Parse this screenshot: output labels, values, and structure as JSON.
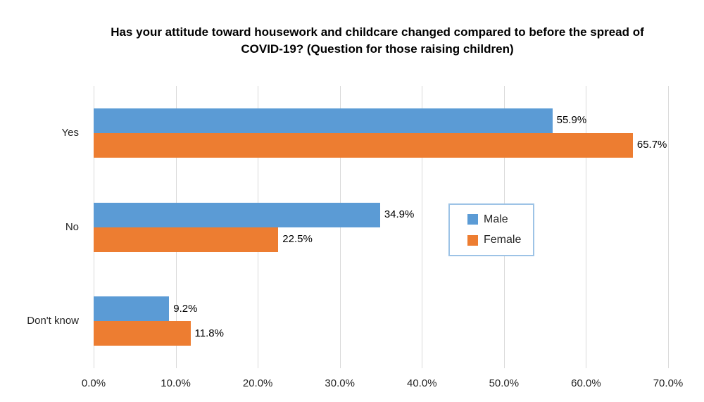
{
  "chart_data": {
    "type": "bar",
    "orientation": "horizontal",
    "title": "Has your attitude toward housework and childcare changed compared to before the spread of COVID-19? (Question for those raising children)",
    "categories": [
      "Yes",
      "No",
      "Don't know"
    ],
    "series": [
      {
        "name": "Male",
        "color": "#5B9BD5",
        "values": [
          55.9,
          34.9,
          9.2
        ],
        "labels": [
          "55.9%",
          "34.9%",
          "9.2%"
        ]
      },
      {
        "name": "Female",
        "color": "#ED7D31",
        "values": [
          65.7,
          22.5,
          11.8
        ],
        "labels": [
          "65.7%",
          "22.5%",
          "11.8%"
        ]
      }
    ],
    "xlabel": "",
    "ylabel": "",
    "xlim": [
      0,
      70
    ],
    "tick_values": [
      0,
      10,
      20,
      30,
      40,
      50,
      60,
      70
    ],
    "tick_labels": [
      "0.0%",
      "10.0%",
      "20.0%",
      "30.0%",
      "40.0%",
      "50.0%",
      "60.0%",
      "70.0%"
    ],
    "grid": "vertical-on",
    "gridline_color": "#D9D9D9",
    "legend_position": "center-right",
    "legend_border_color": "#9DC3E6",
    "legend_entries": [
      "Male",
      "Female"
    ]
  }
}
